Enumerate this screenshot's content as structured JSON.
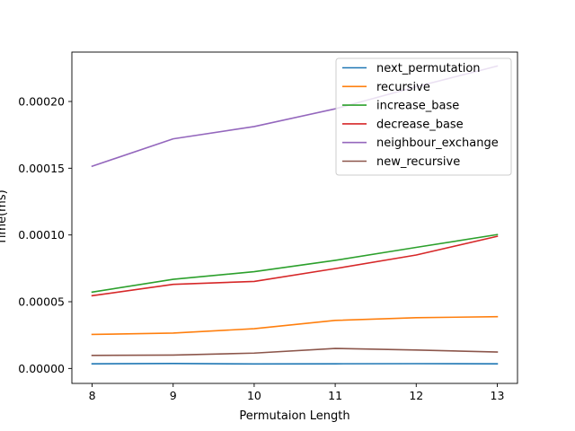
{
  "chart_data": {
    "type": "line",
    "title": "",
    "xlabel": "Permutaion Length",
    "ylabel": "Time(ms)",
    "x": [
      8,
      9,
      10,
      11,
      12,
      13
    ],
    "xlim": [
      7.75,
      13.25
    ],
    "ylim": [
      -1.12e-05,
      0.000237
    ],
    "xticks": [
      8,
      9,
      10,
      11,
      12,
      13
    ],
    "yticks": [
      0,
      5e-05,
      0.0001,
      0.00015,
      0.0002
    ],
    "ytick_labels": [
      "0.00000",
      "0.00005",
      "0.00010",
      "0.00015",
      "0.00020"
    ],
    "grid": false,
    "legend_position": "upper right",
    "series": [
      {
        "name": "next_permutation",
        "color": "#1f77b4",
        "values": [
          3.5e-06,
          3.7e-06,
          3.4e-06,
          3.5e-06,
          3.6e-06,
          3.5e-06
        ]
      },
      {
        "name": "recursive",
        "color": "#ff7f0e",
        "values": [
          2.55e-05,
          2.65e-05,
          2.98e-05,
          3.6e-05,
          3.8e-05,
          3.88e-05
        ]
      },
      {
        "name": "increase_base",
        "color": "#2ca02c",
        "values": [
          5.72e-05,
          6.68e-05,
          7.25e-05,
          8.1e-05,
          9.07e-05,
          0.0001003
        ]
      },
      {
        "name": "decrease_base",
        "color": "#d62728",
        "values": [
          5.45e-05,
          6.3e-05,
          6.52e-05,
          7.48e-05,
          8.5e-05,
          9.9e-05
        ]
      },
      {
        "name": "neighbour_exchange",
        "color": "#9467bd",
        "values": [
          0.0001515,
          0.000172,
          0.0001812,
          0.0001945,
          0.000211,
          0.0002265
        ]
      },
      {
        "name": "new_recursive",
        "color": "#8c564b",
        "values": [
          9.8e-06,
          1e-05,
          1.15e-05,
          1.5e-05,
          1.38e-05,
          1.23e-05
        ]
      }
    ]
  }
}
